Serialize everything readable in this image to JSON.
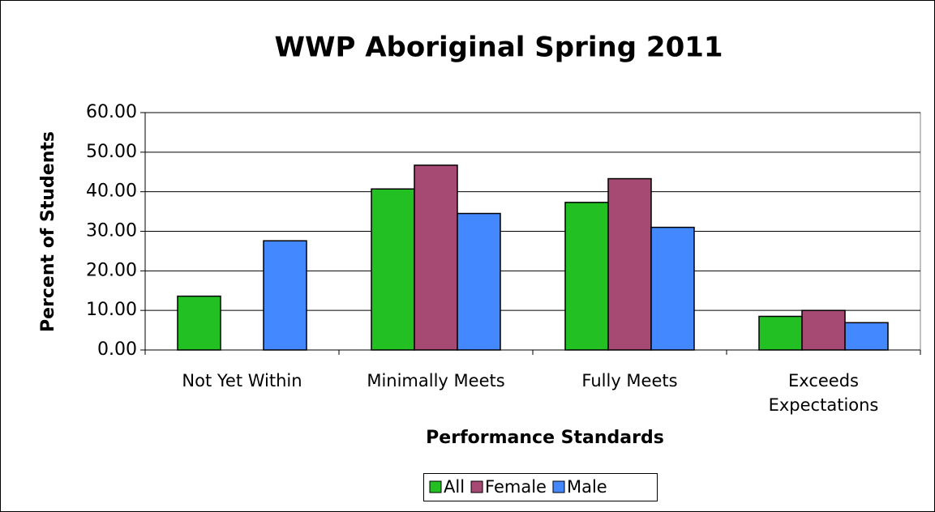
{
  "chart_data": {
    "type": "bar",
    "title": "WWP Aboriginal Spring 2011",
    "x_label": "Performance Standards",
    "y_label": "Percent of Students",
    "categories": [
      "Not Yet Within",
      "Minimally Meets",
      "Fully Meets",
      "Exceeds Expectations"
    ],
    "series": [
      {
        "name": "All",
        "color": "#22c022",
        "values": [
          13.6,
          40.7,
          37.3,
          8.5
        ]
      },
      {
        "name": "Female",
        "color": "#a64a73",
        "values": [
          0,
          46.7,
          43.3,
          10.0
        ]
      },
      {
        "name": "Male",
        "color": "#4488ff",
        "values": [
          27.6,
          34.5,
          31.0,
          6.9
        ]
      }
    ],
    "ylim": [
      0,
      60
    ],
    "yticks": [
      {
        "value": 0,
        "label": "0.00"
      },
      {
        "value": 10,
        "label": "10.00"
      },
      {
        "value": 20,
        "label": "20.00"
      },
      {
        "value": 30,
        "label": "30.00"
      },
      {
        "value": 40,
        "label": "40.00"
      },
      {
        "value": 50,
        "label": "50.00"
      },
      {
        "value": 60,
        "label": "60.00"
      }
    ],
    "grid": true,
    "legend": "bottom"
  }
}
